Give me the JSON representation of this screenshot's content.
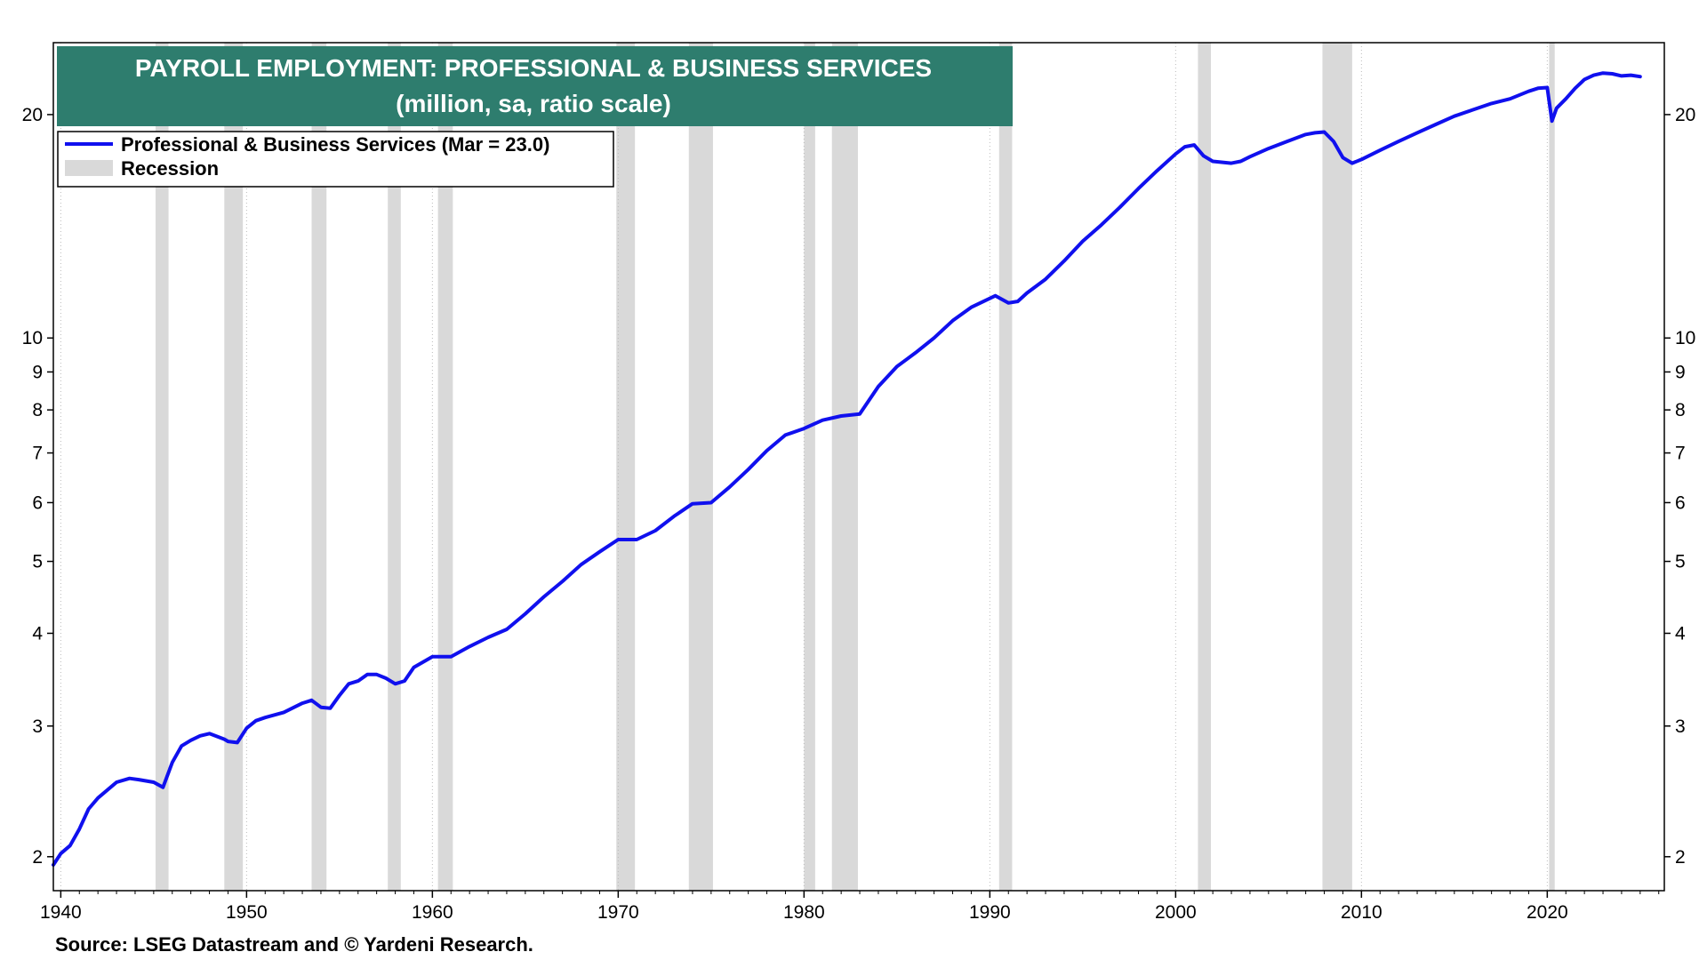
{
  "chart_data": {
    "type": "line",
    "title": "PAYROLL EMPLOYMENT: PROFESSIONAL & BUSINESS SERVICES",
    "subtitle": "(million, sa, ratio scale)",
    "source": "Source: LSEG Datastream and © Yardeni Research.",
    "y_scale": "log",
    "ylim": [
      1.8,
      25
    ],
    "xlim": [
      1939.6,
      2026.3
    ],
    "x_ticks": [
      1940,
      1950,
      1960,
      1970,
      1980,
      1990,
      2000,
      2010,
      2020
    ],
    "x_tick_labels": [
      "1940",
      "1950",
      "1960",
      "1970",
      "1980",
      "1990",
      "2000",
      "2010",
      "2020"
    ],
    "y_ticks": [
      2,
      3,
      4,
      5,
      6,
      7,
      8,
      9,
      10,
      20
    ],
    "y_tick_labels": [
      "2",
      "3",
      "4",
      "5",
      "6",
      "7",
      "8",
      "9",
      "10",
      "20"
    ],
    "grid": "vertical",
    "legend_position": "top-left",
    "colors": {
      "series": "#1010ee",
      "recession": "#d9d9d9",
      "title_bg": "#2e7d6e"
    },
    "legend": [
      {
        "label": "Professional & Business Services (Mar = 23.0)",
        "kind": "line"
      },
      {
        "label": "Recession",
        "kind": "band"
      }
    ],
    "recessions": [
      [
        1945.1,
        1945.8
      ],
      [
        1948.8,
        1949.8
      ],
      [
        1953.5,
        1954.3
      ],
      [
        1957.6,
        1958.3
      ],
      [
        1960.3,
        1961.1
      ],
      [
        1969.9,
        1970.9
      ],
      [
        1973.8,
        1975.1
      ],
      [
        1980.0,
        1980.6
      ],
      [
        1981.5,
        1982.9
      ],
      [
        1990.5,
        1991.2
      ],
      [
        2001.2,
        2001.9
      ],
      [
        2007.9,
        2009.5
      ],
      [
        2020.1,
        2020.4
      ]
    ],
    "series": [
      {
        "name": "Professional & Business Services (Mar = 23.0)",
        "x": [
          1939.6,
          1940.0,
          1940.5,
          1941.0,
          1941.5,
          1942.0,
          1943.0,
          1943.7,
          1944.2,
          1945.0,
          1945.5,
          1946.0,
          1946.5,
          1947.0,
          1947.5,
          1948.0,
          1948.8,
          1949.0,
          1949.5,
          1950.0,
          1950.5,
          1951.0,
          1952.0,
          1953.0,
          1953.5,
          1954.0,
          1954.5,
          1955.0,
          1955.5,
          1956.0,
          1956.5,
          1957.0,
          1957.5,
          1958.0,
          1958.5,
          1959.0,
          1960.0,
          1961.0,
          1962.0,
          1963.0,
          1964.0,
          1965.0,
          1966.0,
          1967.0,
          1968.0,
          1969.0,
          1970.0,
          1971.0,
          1972.0,
          1973.0,
          1974.0,
          1975.0,
          1976.0,
          1977.0,
          1978.0,
          1979.0,
          1980.0,
          1981.0,
          1982.0,
          1983.0,
          1984.0,
          1985.0,
          1986.0,
          1987.0,
          1988.0,
          1989.0,
          1990.3,
          1991.0,
          1991.5,
          1992.0,
          1993.0,
          1994.0,
          1995.0,
          1996.0,
          1997.0,
          1998.0,
          1999.0,
          2000.0,
          2000.5,
          2001.0,
          2001.5,
          2002.0,
          2003.0,
          2003.5,
          2004.0,
          2005.0,
          2006.0,
          2007.0,
          2007.5,
          2008.0,
          2008.5,
          2009.0,
          2009.5,
          2010.0,
          2011.0,
          2012.0,
          2013.0,
          2014.0,
          2015.0,
          2016.0,
          2017.0,
          2018.0,
          2019.0,
          2019.5,
          2020.0,
          2020.25,
          2020.5,
          2021.0,
          2021.5,
          2022.0,
          2022.5,
          2023.0,
          2023.5,
          2024.0,
          2024.5,
          2025.0
        ],
        "values": [
          1.95,
          2.02,
          2.07,
          2.18,
          2.32,
          2.4,
          2.52,
          2.55,
          2.54,
          2.52,
          2.48,
          2.68,
          2.82,
          2.87,
          2.91,
          2.93,
          2.88,
          2.86,
          2.85,
          2.98,
          3.05,
          3.08,
          3.13,
          3.22,
          3.25,
          3.18,
          3.17,
          3.3,
          3.42,
          3.45,
          3.52,
          3.52,
          3.48,
          3.42,
          3.45,
          3.6,
          3.72,
          3.72,
          3.84,
          3.95,
          4.05,
          4.25,
          4.48,
          4.7,
          4.95,
          5.15,
          5.35,
          5.35,
          5.5,
          5.75,
          5.98,
          6.0,
          6.3,
          6.65,
          7.05,
          7.4,
          7.55,
          7.75,
          7.85,
          7.9,
          8.6,
          9.15,
          9.55,
          10.0,
          10.55,
          11.0,
          11.4,
          11.15,
          11.2,
          11.5,
          12.0,
          12.7,
          13.5,
          14.2,
          15.0,
          15.9,
          16.8,
          17.7,
          18.1,
          18.2,
          17.6,
          17.3,
          17.2,
          17.3,
          17.55,
          18.0,
          18.4,
          18.8,
          18.9,
          18.95,
          18.4,
          17.5,
          17.2,
          17.4,
          17.9,
          18.4,
          18.9,
          19.4,
          19.9,
          20.3,
          20.7,
          21.0,
          21.5,
          21.7,
          21.75,
          19.6,
          20.4,
          21.0,
          21.7,
          22.3,
          22.6,
          22.75,
          22.7,
          22.55,
          22.6,
          22.5
        ]
      }
    ]
  }
}
